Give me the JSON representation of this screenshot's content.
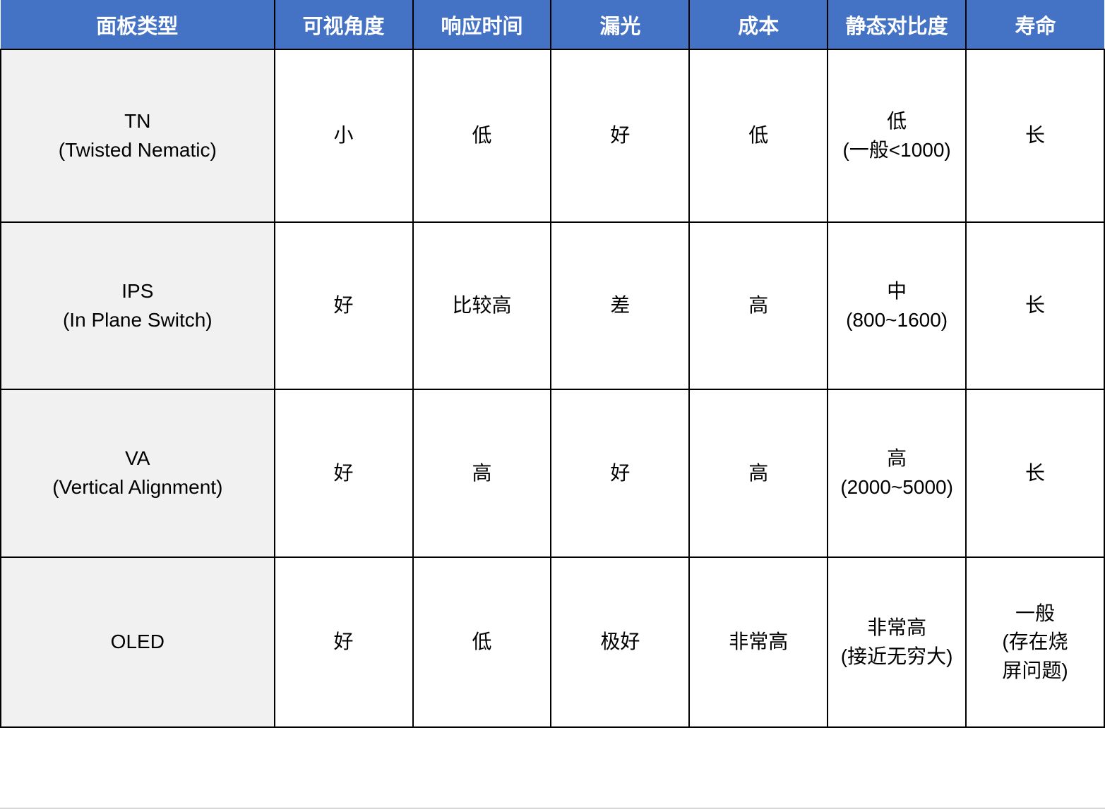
{
  "table": {
    "header": [
      "面板类型",
      "可视角度",
      "响应时间",
      "漏光",
      "成本",
      "静态对比度",
      "寿命"
    ],
    "rows": [
      {
        "label": [
          "TN",
          "(Twisted Nematic)"
        ],
        "cells": [
          [
            "小"
          ],
          [
            "低"
          ],
          [
            "好"
          ],
          [
            "低"
          ],
          [
            "低",
            "(一般<1000)"
          ],
          [
            "长"
          ]
        ]
      },
      {
        "label": [
          "IPS",
          "(In Plane Switch)"
        ],
        "cells": [
          [
            "好"
          ],
          [
            "比较高"
          ],
          [
            "差"
          ],
          [
            "高"
          ],
          [
            "中",
            "(800~1600)"
          ],
          [
            "长"
          ]
        ]
      },
      {
        "label": [
          "VA",
          "(Vertical Alignment)"
        ],
        "cells": [
          [
            "好"
          ],
          [
            "高"
          ],
          [
            "好"
          ],
          [
            "高"
          ],
          [
            "高",
            "(2000~5000)"
          ],
          [
            "长"
          ]
        ]
      },
      {
        "label": [
          "OLED"
        ],
        "cells": [
          [
            "好"
          ],
          [
            "低"
          ],
          [
            "极好"
          ],
          [
            "非常高"
          ],
          [
            "非常高",
            "(接近无穷大)"
          ],
          [
            "一般",
            "(存在烧",
            "屏问题)"
          ]
        ]
      }
    ]
  },
  "colors": {
    "header_bg": "#4472C4",
    "header_text": "#FFFFFF",
    "row_label_bg": "#F1F1F1",
    "cell_bg": "#FFFFFF",
    "border": "#000000",
    "page_bottom_line": "#D8D8D8"
  }
}
